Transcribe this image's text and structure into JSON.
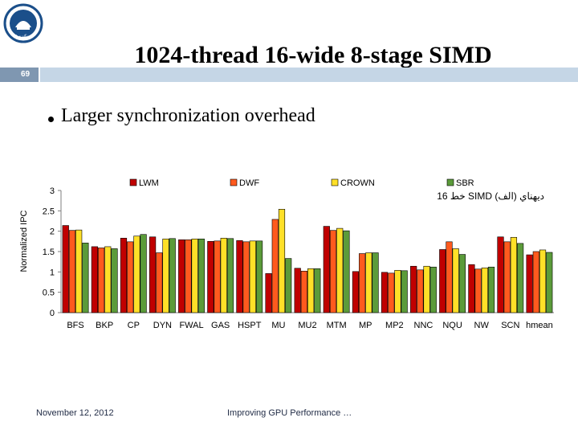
{
  "slide": {
    "title": "1024-thread 16-wide 8-stage SIMD",
    "number": "69",
    "bullet": "Larger synchronization overhead",
    "footer_date": "November 12, 2012",
    "footer_title": "Improving GPU Performance …",
    "logo_text": "دانشگاه تهران"
  },
  "colors": {
    "band": "#c5d6e6",
    "slidenum_bg": "#7f97b1",
    "logo": "#1b4f8a"
  },
  "chart_data": {
    "type": "bar",
    "ylabel": "Normalized IPC",
    "xlabel": "",
    "ylim": [
      0,
      3
    ],
    "yticks": [
      "0",
      "0.5",
      "1",
      "1.5",
      "2",
      "2.5",
      "3"
    ],
    "ytick_values": [
      0,
      0.5,
      1,
      1.5,
      2,
      2.5,
      3
    ],
    "grid": false,
    "legend_position": "top",
    "annotation": "خط 16 SIMD ديهناي (الف)",
    "categories": [
      "BFS",
      "BKP",
      "CP",
      "DYN",
      "FWAL",
      "GAS",
      "HSPT",
      "MU",
      "MU2",
      "MTM",
      "MP",
      "MP2",
      "NNC",
      "NQU",
      "NW",
      "SCN",
      "hmean"
    ],
    "series": [
      {
        "name": "LWM",
        "color": "#c00000",
        "values": [
          2.14,
          1.62,
          1.83,
          1.86,
          1.79,
          1.75,
          1.77,
          0.96,
          1.09,
          2.12,
          1.01,
          0.99,
          1.14,
          1.55,
          1.18,
          1.86,
          1.42
        ]
      },
      {
        "name": "DWF",
        "color": "#ff5a1e",
        "values": [
          2.02,
          1.59,
          1.74,
          1.47,
          1.79,
          1.76,
          1.74,
          2.29,
          1.02,
          2.02,
          1.45,
          0.97,
          1.05,
          1.74,
          1.07,
          1.74,
          1.5
        ]
      },
      {
        "name": "CROWN",
        "color": "#ffe028",
        "values": [
          2.03,
          1.62,
          1.88,
          1.81,
          1.81,
          1.83,
          1.76,
          2.54,
          1.08,
          2.07,
          1.47,
          1.04,
          1.14,
          1.57,
          1.1,
          1.85,
          1.54
        ]
      },
      {
        "name": "SBR",
        "color": "#5b9b3a",
        "values": [
          1.71,
          1.57,
          1.92,
          1.82,
          1.81,
          1.82,
          1.76,
          1.33,
          1.08,
          2.01,
          1.47,
          1.03,
          1.12,
          1.43,
          1.12,
          1.7,
          1.48
        ]
      }
    ]
  }
}
